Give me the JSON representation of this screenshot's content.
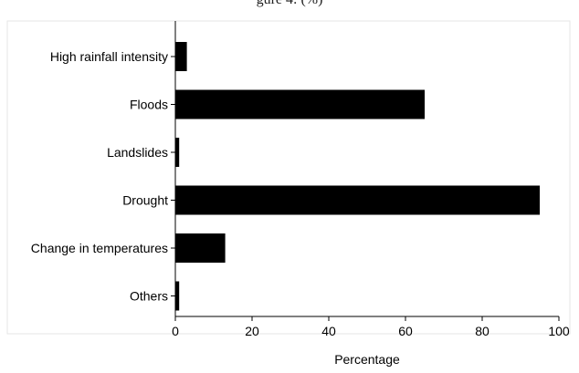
{
  "caption": "gure 4: (%)",
  "chart_data": {
    "type": "bar",
    "orientation": "horizontal",
    "categories": [
      "High rainfall intensity",
      "Floods",
      "Landslides",
      "Drought",
      "Change in temperatures",
      "Others"
    ],
    "values": [
      3,
      65,
      1,
      95,
      13,
      1
    ],
    "xlabel": "Percentage",
    "ylabel": "",
    "xlim": [
      0,
      100
    ],
    "xticks": [
      0,
      20,
      40,
      60,
      80,
      100
    ],
    "bar_color": "#000000",
    "grid": false,
    "legend": "none"
  }
}
